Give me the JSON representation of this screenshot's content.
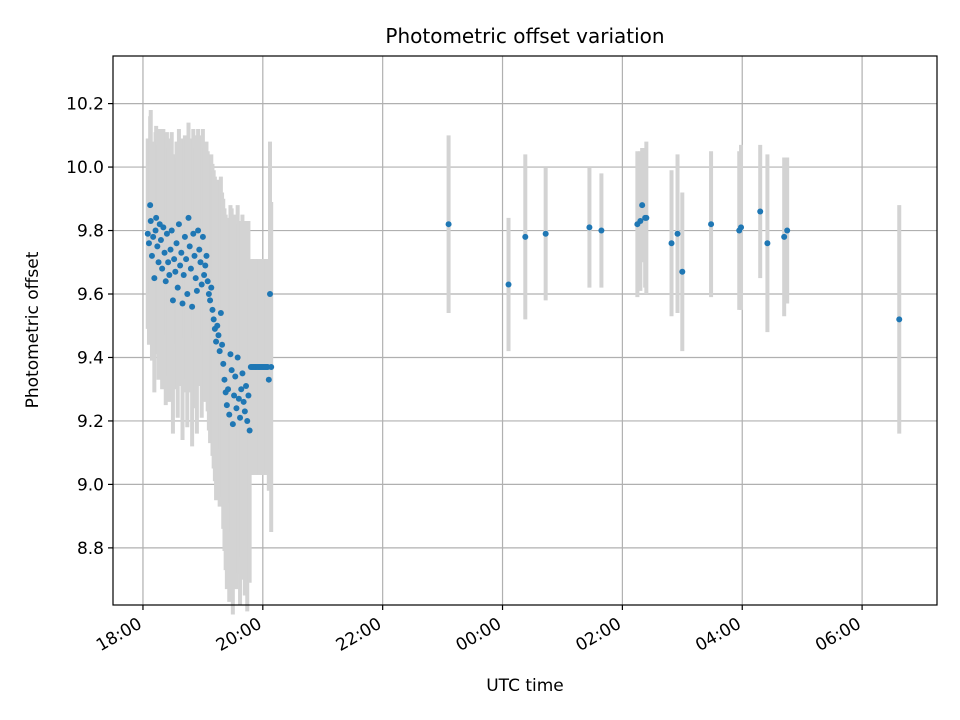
{
  "chart_data": {
    "type": "scatter",
    "title": "Photometric offset variation",
    "xlabel": "UTC time",
    "ylabel": "Photometric offset",
    "x_tick_labels": [
      "18:00",
      "20:00",
      "22:00",
      "00:00",
      "02:00",
      "04:00",
      "06:00"
    ],
    "x_tick_hours": [
      18,
      20,
      22,
      24,
      26,
      28,
      30
    ],
    "y_ticks": [
      8.8,
      9.0,
      9.2,
      9.4,
      9.6,
      9.8,
      10.0,
      10.2
    ],
    "y_tick_labels": [
      "8.8",
      "9.0",
      "9.2",
      "9.4",
      "9.6",
      "9.8",
      "10.0",
      "10.2"
    ],
    "xlim_hours": [
      17.5,
      31.25
    ],
    "ylim": [
      8.62,
      10.35
    ],
    "grid": true,
    "point_color": "#1f77b4",
    "errorbar_color": "#d3d3d3",
    "series": [
      {
        "x_hours": [
          18.08,
          18.1,
          18.12,
          18.13,
          18.15,
          18.17,
          18.19,
          18.21,
          18.22,
          18.24,
          18.26,
          18.28,
          18.3,
          18.32,
          18.34,
          18.36,
          18.38,
          18.4,
          18.42,
          18.44,
          18.46,
          18.48,
          18.5,
          18.52,
          18.54,
          18.56,
          18.58,
          18.6,
          18.62,
          18.64,
          18.66,
          18.68,
          18.7,
          18.72,
          18.74,
          18.76,
          18.78,
          18.8,
          18.82,
          18.84,
          18.86,
          18.88,
          18.9,
          18.92,
          18.94,
          18.96,
          18.98,
          19.0,
          19.02,
          19.04,
          19.06,
          19.08,
          19.1,
          19.12,
          19.14,
          19.16,
          19.18,
          19.2,
          19.22,
          19.24,
          19.26,
          19.28,
          19.3,
          19.32,
          19.34,
          19.36,
          19.38,
          19.4,
          19.42,
          19.44,
          19.46,
          19.48,
          19.5,
          19.52,
          19.54,
          19.56,
          19.58,
          19.6,
          19.62,
          19.64,
          19.66,
          19.68,
          19.7,
          19.72,
          19.74,
          19.76,
          19.78,
          19.8,
          19.82,
          19.84,
          19.86,
          19.88,
          19.9,
          19.92,
          19.94,
          19.96,
          19.98,
          20.0,
          20.02,
          20.04,
          20.06,
          20.08,
          20.1,
          20.12,
          20.14,
          23.1,
          24.1,
          24.38,
          24.72,
          25.45,
          25.65,
          26.25,
          26.3,
          26.33,
          26.38,
          26.4,
          26.82,
          26.92,
          27.0,
          27.48,
          27.95,
          27.98,
          28.3,
          28.42,
          28.7,
          28.75,
          30.62
        ],
        "y": [
          9.79,
          9.76,
          9.88,
          9.83,
          9.72,
          9.78,
          9.65,
          9.8,
          9.84,
          9.75,
          9.7,
          9.82,
          9.77,
          9.68,
          9.81,
          9.73,
          9.64,
          9.79,
          9.7,
          9.66,
          9.74,
          9.8,
          9.58,
          9.71,
          9.67,
          9.76,
          9.62,
          9.82,
          9.69,
          9.73,
          9.57,
          9.66,
          9.78,
          9.71,
          9.6,
          9.84,
          9.75,
          9.68,
          9.56,
          9.79,
          9.72,
          9.65,
          9.61,
          9.8,
          9.74,
          9.7,
          9.63,
          9.78,
          9.66,
          9.69,
          9.72,
          9.64,
          9.6,
          9.58,
          9.62,
          9.55,
          9.52,
          9.49,
          9.45,
          9.5,
          9.47,
          9.42,
          9.54,
          9.44,
          9.38,
          9.33,
          9.29,
          9.25,
          9.3,
          9.22,
          9.41,
          9.36,
          9.19,
          9.28,
          9.34,
          9.24,
          9.4,
          9.27,
          9.21,
          9.3,
          9.35,
          9.26,
          9.23,
          9.31,
          9.2,
          9.28,
          9.17,
          9.37,
          9.37,
          9.37,
          9.37,
          9.37,
          9.37,
          9.37,
          9.37,
          9.37,
          9.37,
          9.37,
          9.37,
          9.37,
          9.37,
          9.37,
          9.33,
          9.6,
          9.37,
          9.82,
          9.63,
          9.78,
          9.79,
          9.81,
          9.8,
          9.82,
          9.83,
          9.88,
          9.84,
          9.84,
          9.76,
          9.79,
          9.67,
          9.82,
          9.8,
          9.81,
          9.86,
          9.76,
          9.78,
          9.8,
          9.52
        ],
        "yerr": [
          0.3,
          0.32,
          0.28,
          0.35,
          0.33,
          0.3,
          0.36,
          0.31,
          0.29,
          0.34,
          0.37,
          0.3,
          0.33,
          0.38,
          0.31,
          0.34,
          0.39,
          0.32,
          0.36,
          0.4,
          0.35,
          0.31,
          0.42,
          0.33,
          0.37,
          0.32,
          0.41,
          0.3,
          0.38,
          0.36,
          0.43,
          0.37,
          0.32,
          0.38,
          0.42,
          0.3,
          0.34,
          0.39,
          0.44,
          0.33,
          0.38,
          0.41,
          0.45,
          0.32,
          0.36,
          0.39,
          0.42,
          0.34,
          0.4,
          0.38,
          0.36,
          0.41,
          0.43,
          0.45,
          0.42,
          0.46,
          0.47,
          0.48,
          0.5,
          0.46,
          0.47,
          0.49,
          0.43,
          0.48,
          0.52,
          0.54,
          0.56,
          0.58,
          0.54,
          0.59,
          0.47,
          0.51,
          0.6,
          0.55,
          0.51,
          0.57,
          0.48,
          0.55,
          0.59,
          0.53,
          0.5,
          0.56,
          0.58,
          0.52,
          0.6,
          0.55,
          0.48,
          0.34,
          0.34,
          0.34,
          0.34,
          0.34,
          0.34,
          0.34,
          0.34,
          0.34,
          0.34,
          0.34,
          0.34,
          0.34,
          0.34,
          0.34,
          0.35,
          0.48,
          0.52,
          0.28,
          0.21,
          0.26,
          0.21,
          0.19,
          0.18,
          0.23,
          0.22,
          0.18,
          0.22,
          0.24,
          0.23,
          0.25,
          0.25,
          0.23,
          0.25,
          0.26,
          0.21,
          0.28,
          0.25,
          0.23,
          0.36
        ]
      }
    ]
  }
}
